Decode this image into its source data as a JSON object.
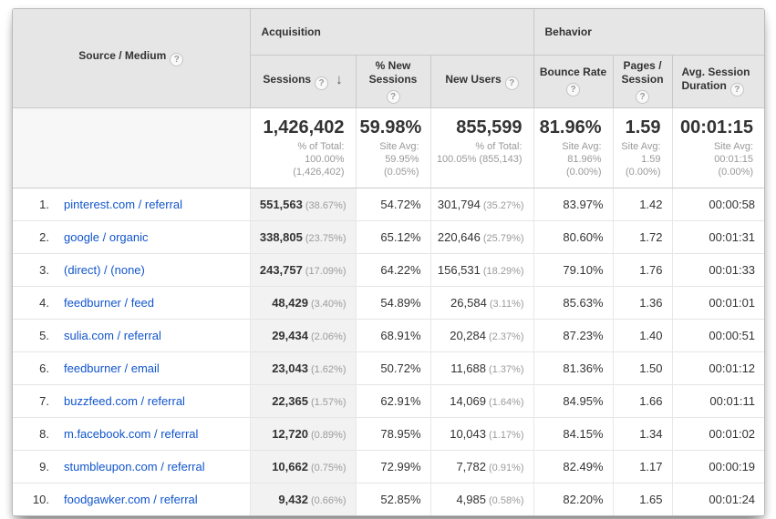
{
  "colors": {
    "link_blue": "#1155cc",
    "header_bg": "#e6e6e6",
    "sorted_column_bg": "#f2f2f2",
    "secondary_text": "#999999"
  },
  "icons": {
    "help": "?",
    "sort_desc": "↓"
  },
  "header": {
    "groups": {
      "acquisition": "Acquisition",
      "behavior": "Behavior"
    },
    "columns": {
      "source": "Source / Medium",
      "sessions": "Sessions",
      "new_sessions_line1": "% New",
      "new_sessions_line2": "Sessions",
      "new_users": "New Users",
      "bounce_rate": "Bounce Rate",
      "pages_line1": "Pages /",
      "pages_line2": "Session",
      "duration_line1": "Avg. Session",
      "duration_line2": "Duration"
    }
  },
  "summary": {
    "sessions": {
      "value": "1,426,402",
      "sub": "% of Total:\n100.00%\n(1,426,402)"
    },
    "new_sessions": {
      "value": "59.98%",
      "sub": "Site Avg:\n59.95%\n(0.05%)"
    },
    "new_users": {
      "value": "855,599",
      "sub": "% of Total:\n100.05% (855,143)"
    },
    "bounce_rate": {
      "value": "81.96%",
      "sub": "Site Avg:\n81.96%\n(0.00%)"
    },
    "pages": {
      "value": "1.59",
      "sub": "Site Avg:\n1.59\n(0.00%)"
    },
    "duration": {
      "value": "00:01:15",
      "sub": "Site Avg:\n00:01:15\n(0.00%)"
    }
  },
  "rows": [
    {
      "rank": "1.",
      "source": "pinterest.com / referral",
      "sessions": "551,563",
      "sessions_pct": "(38.67%)",
      "new_sessions": "54.72%",
      "new_users": "301,794",
      "new_users_pct": "(35.27%)",
      "bounce_rate": "83.97%",
      "pages": "1.42",
      "duration": "00:00:58"
    },
    {
      "rank": "2.",
      "source": "google / organic",
      "sessions": "338,805",
      "sessions_pct": "(23.75%)",
      "new_sessions": "65.12%",
      "new_users": "220,646",
      "new_users_pct": "(25.79%)",
      "bounce_rate": "80.60%",
      "pages": "1.72",
      "duration": "00:01:31"
    },
    {
      "rank": "3.",
      "source": "(direct) / (none)",
      "sessions": "243,757",
      "sessions_pct": "(17.09%)",
      "new_sessions": "64.22%",
      "new_users": "156,531",
      "new_users_pct": "(18.29%)",
      "bounce_rate": "79.10%",
      "pages": "1.76",
      "duration": "00:01:33"
    },
    {
      "rank": "4.",
      "source": "feedburner / feed",
      "sessions": "48,429",
      "sessions_pct": "(3.40%)",
      "new_sessions": "54.89%",
      "new_users": "26,584",
      "new_users_pct": "(3.11%)",
      "bounce_rate": "85.63%",
      "pages": "1.36",
      "duration": "00:01:01"
    },
    {
      "rank": "5.",
      "source": "sulia.com / referral",
      "sessions": "29,434",
      "sessions_pct": "(2.06%)",
      "new_sessions": "68.91%",
      "new_users": "20,284",
      "new_users_pct": "(2.37%)",
      "bounce_rate": "87.23%",
      "pages": "1.40",
      "duration": "00:00:51"
    },
    {
      "rank": "6.",
      "source": "feedburner / email",
      "sessions": "23,043",
      "sessions_pct": "(1.62%)",
      "new_sessions": "50.72%",
      "new_users": "11,688",
      "new_users_pct": "(1.37%)",
      "bounce_rate": "81.36%",
      "pages": "1.50",
      "duration": "00:01:12"
    },
    {
      "rank": "7.",
      "source": "buzzfeed.com / referral",
      "sessions": "22,365",
      "sessions_pct": "(1.57%)",
      "new_sessions": "62.91%",
      "new_users": "14,069",
      "new_users_pct": "(1.64%)",
      "bounce_rate": "84.95%",
      "pages": "1.66",
      "duration": "00:01:11"
    },
    {
      "rank": "8.",
      "source": "m.facebook.com / referral",
      "sessions": "12,720",
      "sessions_pct": "(0.89%)",
      "new_sessions": "78.95%",
      "new_users": "10,043",
      "new_users_pct": "(1.17%)",
      "bounce_rate": "84.15%",
      "pages": "1.34",
      "duration": "00:01:02"
    },
    {
      "rank": "9.",
      "source": "stumbleupon.com / referral",
      "sessions": "10,662",
      "sessions_pct": "(0.75%)",
      "new_sessions": "72.99%",
      "new_users": "7,782",
      "new_users_pct": "(0.91%)",
      "bounce_rate": "82.49%",
      "pages": "1.17",
      "duration": "00:00:19"
    },
    {
      "rank": "10.",
      "source": "foodgawker.com / referral",
      "sessions": "9,432",
      "sessions_pct": "(0.66%)",
      "new_sessions": "52.85%",
      "new_users": "4,985",
      "new_users_pct": "(0.58%)",
      "bounce_rate": "82.20%",
      "pages": "1.65",
      "duration": "00:01:24"
    }
  ]
}
